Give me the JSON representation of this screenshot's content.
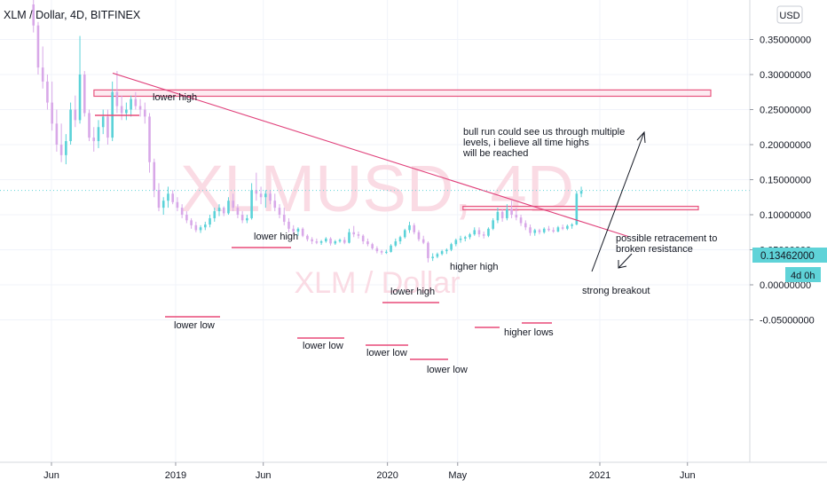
{
  "header": {
    "symbol_line": "XLM / Dollar, 4D, BITFINEX",
    "currency_button": "USD"
  },
  "watermark": {
    "main": "XLMUSD, 4D",
    "sub": "XLM / Dollar"
  },
  "price_tags": {
    "last_price": "0.13462000",
    "countdown": "4d 0h"
  },
  "colors": {
    "candle_up": "#5ad2d8",
    "candle_down": "#d8a8e8",
    "trendline": "#e0407a",
    "zone_stroke": "#e8557f",
    "zone_fill": "#fce4ec",
    "level_line": "#e84a78",
    "price_tag_bg": "#5fd3d8",
    "watermark": "#fadbe4"
  },
  "annotations": {
    "lower_high_1": "lower high",
    "lower_high_2": "lower high",
    "lower_high_3": "lower high",
    "higher_high": "higher high",
    "lower_low_1": "lower low",
    "lower_low_2": "lower low",
    "lower_low_3": "lower low",
    "lower_low_4": "lower low",
    "higher_lows": "higher lows",
    "strong_breakout": "strong breakout",
    "retracement_line1": "possible retracement to",
    "retracement_line2": "broken resistance",
    "bull_line1": "bull run could see us through multiple",
    "bull_line2": "levels, i believe all time highs",
    "bull_line3": "will be reached"
  },
  "chart_data": {
    "type": "candlestick",
    "symbol": "XLM / Dollar",
    "interval": "4D",
    "exchange": "BITFINEX",
    "y_axis": {
      "ticks": [
        0.35,
        0.3,
        0.25,
        0.2,
        0.15,
        0.1,
        0.05,
        0.0,
        -0.05
      ],
      "tick_labels": [
        "0.35000000",
        "0.30000000",
        "0.25000000",
        "0.20000000",
        "0.15000000",
        "0.10000000",
        "0.05000000",
        "0.00000000",
        "-0.05000000"
      ],
      "range": [
        -0.075,
        0.385
      ]
    },
    "x_axis": {
      "tick_labels": [
        "Jun",
        "2019",
        "Jun",
        "2020",
        "May",
        "2021",
        "Jun"
      ],
      "tick_dates": [
        "2018-06",
        "2019-01",
        "2019-06",
        "2020-01",
        "2020-05",
        "2021-01",
        "2021-06"
      ]
    },
    "last_price": 0.13462,
    "resistance_zones": [
      {
        "price_from": 0.269,
        "price_to": 0.278,
        "date_from": "2018-08",
        "date_to": "2021-08"
      },
      {
        "price_from": 0.107,
        "price_to": 0.112,
        "date_from": "2020-05",
        "date_to": "2021-08"
      }
    ],
    "trendline": {
      "from": {
        "date": "2018-09",
        "price": 0.302
      },
      "to": {
        "date": "2021-01",
        "price": 0.069
      }
    },
    "candles_ohlc_approx": [
      {
        "date": "2018-05-01",
        "o": 0.4,
        "h": 0.41,
        "l": 0.36,
        "c": 0.37
      },
      {
        "date": "2018-05-09",
        "o": 0.37,
        "h": 0.375,
        "l": 0.3,
        "c": 0.31
      },
      {
        "date": "2018-05-17",
        "o": 0.31,
        "h": 0.34,
        "l": 0.28,
        "c": 0.29
      },
      {
        "date": "2018-05-25",
        "o": 0.29,
        "h": 0.3,
        "l": 0.25,
        "c": 0.26
      },
      {
        "date": "2018-06-02",
        "o": 0.26,
        "h": 0.29,
        "l": 0.22,
        "c": 0.23
      },
      {
        "date": "2018-06-10",
        "o": 0.23,
        "h": 0.25,
        "l": 0.19,
        "c": 0.2
      },
      {
        "date": "2018-06-18",
        "o": 0.2,
        "h": 0.23,
        "l": 0.175,
        "c": 0.185
      },
      {
        "date": "2018-06-26",
        "o": 0.185,
        "h": 0.215,
        "l": 0.172,
        "c": 0.205
      },
      {
        "date": "2018-07-04",
        "o": 0.205,
        "h": 0.26,
        "l": 0.2,
        "c": 0.25
      },
      {
        "date": "2018-07-12",
        "o": 0.25,
        "h": 0.27,
        "l": 0.225,
        "c": 0.235
      },
      {
        "date": "2018-07-20",
        "o": 0.235,
        "h": 0.355,
        "l": 0.23,
        "c": 0.3
      },
      {
        "date": "2018-07-28",
        "o": 0.3,
        "h": 0.305,
        "l": 0.24,
        "c": 0.245
      },
      {
        "date": "2018-08-05",
        "o": 0.245,
        "h": 0.25,
        "l": 0.205,
        "c": 0.21
      },
      {
        "date": "2018-08-13",
        "o": 0.21,
        "h": 0.225,
        "l": 0.19,
        "c": 0.205
      },
      {
        "date": "2018-08-21",
        "o": 0.205,
        "h": 0.235,
        "l": 0.195,
        "c": 0.225
      },
      {
        "date": "2018-08-29",
        "o": 0.225,
        "h": 0.25,
        "l": 0.215,
        "c": 0.24
      },
      {
        "date": "2018-09-06",
        "o": 0.24,
        "h": 0.25,
        "l": 0.2,
        "c": 0.21
      },
      {
        "date": "2018-09-14",
        "o": 0.21,
        "h": 0.29,
        "l": 0.205,
        "c": 0.275
      },
      {
        "date": "2018-09-22",
        "o": 0.275,
        "h": 0.305,
        "l": 0.245,
        "c": 0.255
      },
      {
        "date": "2018-09-30",
        "o": 0.255,
        "h": 0.27,
        "l": 0.235,
        "c": 0.245
      },
      {
        "date": "2018-10-08",
        "o": 0.245,
        "h": 0.26,
        "l": 0.235,
        "c": 0.25
      },
      {
        "date": "2018-10-16",
        "o": 0.25,
        "h": 0.27,
        "l": 0.24,
        "c": 0.265
      },
      {
        "date": "2018-10-24",
        "o": 0.265,
        "h": 0.275,
        "l": 0.25,
        "c": 0.255
      },
      {
        "date": "2018-11-01",
        "o": 0.255,
        "h": 0.265,
        "l": 0.24,
        "c": 0.25
      },
      {
        "date": "2018-11-09",
        "o": 0.25,
        "h": 0.26,
        "l": 0.23,
        "c": 0.24
      },
      {
        "date": "2018-11-17",
        "o": 0.24,
        "h": 0.245,
        "l": 0.16,
        "c": 0.175
      },
      {
        "date": "2018-11-25",
        "o": 0.175,
        "h": 0.18,
        "l": 0.125,
        "c": 0.135
      },
      {
        "date": "2018-12-03",
        "o": 0.135,
        "h": 0.145,
        "l": 0.105,
        "c": 0.11
      },
      {
        "date": "2018-12-11",
        "o": 0.11,
        "h": 0.125,
        "l": 0.1,
        "c": 0.12
      },
      {
        "date": "2018-12-19",
        "o": 0.12,
        "h": 0.14,
        "l": 0.11,
        "c": 0.13
      },
      {
        "date": "2018-12-27",
        "o": 0.13,
        "h": 0.135,
        "l": 0.115,
        "c": 0.118
      },
      {
        "date": "2019-01-04",
        "o": 0.118,
        "h": 0.125,
        "l": 0.105,
        "c": 0.11
      },
      {
        "date": "2019-01-12",
        "o": 0.11,
        "h": 0.115,
        "l": 0.095,
        "c": 0.1
      },
      {
        "date": "2019-01-20",
        "o": 0.1,
        "h": 0.105,
        "l": 0.088,
        "c": 0.092
      },
      {
        "date": "2019-01-28",
        "o": 0.092,
        "h": 0.095,
        "l": 0.08,
        "c": 0.085
      },
      {
        "date": "2019-02-05",
        "o": 0.085,
        "h": 0.09,
        "l": 0.075,
        "c": 0.078
      },
      {
        "date": "2019-02-13",
        "o": 0.078,
        "h": 0.085,
        "l": 0.074,
        "c": 0.082
      },
      {
        "date": "2019-02-21",
        "o": 0.082,
        "h": 0.09,
        "l": 0.078,
        "c": 0.086
      },
      {
        "date": "2019-03-01",
        "o": 0.086,
        "h": 0.1,
        "l": 0.082,
        "c": 0.095
      },
      {
        "date": "2019-03-09",
        "o": 0.095,
        "h": 0.11,
        "l": 0.09,
        "c": 0.105
      },
      {
        "date": "2019-03-17",
        "o": 0.105,
        "h": 0.115,
        "l": 0.098,
        "c": 0.11
      },
      {
        "date": "2019-03-25",
        "o": 0.11,
        "h": 0.112,
        "l": 0.098,
        "c": 0.102
      },
      {
        "date": "2019-04-02",
        "o": 0.102,
        "h": 0.125,
        "l": 0.1,
        "c": 0.12
      },
      {
        "date": "2019-04-10",
        "o": 0.12,
        "h": 0.13,
        "l": 0.105,
        "c": 0.11
      },
      {
        "date": "2019-04-18",
        "o": 0.11,
        "h": 0.115,
        "l": 0.095,
        "c": 0.1
      },
      {
        "date": "2019-04-26",
        "o": 0.1,
        "h": 0.105,
        "l": 0.088,
        "c": 0.092
      },
      {
        "date": "2019-05-04",
        "o": 0.092,
        "h": 0.1,
        "l": 0.088,
        "c": 0.095
      },
      {
        "date": "2019-05-12",
        "o": 0.095,
        "h": 0.145,
        "l": 0.093,
        "c": 0.135
      },
      {
        "date": "2019-05-20",
        "o": 0.135,
        "h": 0.16,
        "l": 0.12,
        "c": 0.13
      },
      {
        "date": "2019-05-28",
        "o": 0.13,
        "h": 0.14,
        "l": 0.115,
        "c": 0.125
      },
      {
        "date": "2019-06-05",
        "o": 0.125,
        "h": 0.135,
        "l": 0.11,
        "c": 0.13
      },
      {
        "date": "2019-06-13",
        "o": 0.13,
        "h": 0.135,
        "l": 0.115,
        "c": 0.12
      },
      {
        "date": "2019-06-21",
        "o": 0.12,
        "h": 0.13,
        "l": 0.105,
        "c": 0.11
      },
      {
        "date": "2019-06-29",
        "o": 0.11,
        "h": 0.115,
        "l": 0.095,
        "c": 0.1
      },
      {
        "date": "2019-07-07",
        "o": 0.1,
        "h": 0.11,
        "l": 0.085,
        "c": 0.09
      },
      {
        "date": "2019-07-15",
        "o": 0.09,
        "h": 0.095,
        "l": 0.075,
        "c": 0.08
      },
      {
        "date": "2019-07-23",
        "o": 0.08,
        "h": 0.085,
        "l": 0.072,
        "c": 0.076
      },
      {
        "date": "2019-07-31",
        "o": 0.076,
        "h": 0.082,
        "l": 0.07,
        "c": 0.08
      },
      {
        "date": "2019-08-08",
        "o": 0.08,
        "h": 0.082,
        "l": 0.068,
        "c": 0.07
      },
      {
        "date": "2019-08-16",
        "o": 0.07,
        "h": 0.072,
        "l": 0.062,
        "c": 0.065
      },
      {
        "date": "2019-08-24",
        "o": 0.065,
        "h": 0.068,
        "l": 0.058,
        "c": 0.062
      },
      {
        "date": "2019-09-01",
        "o": 0.062,
        "h": 0.066,
        "l": 0.058,
        "c": 0.06
      },
      {
        "date": "2019-09-09",
        "o": 0.06,
        "h": 0.064,
        "l": 0.057,
        "c": 0.062
      },
      {
        "date": "2019-09-17",
        "o": 0.062,
        "h": 0.068,
        "l": 0.06,
        "c": 0.066
      },
      {
        "date": "2019-09-25",
        "o": 0.066,
        "h": 0.068,
        "l": 0.056,
        "c": 0.059
      },
      {
        "date": "2019-10-03",
        "o": 0.059,
        "h": 0.064,
        "l": 0.057,
        "c": 0.062
      },
      {
        "date": "2019-10-11",
        "o": 0.062,
        "h": 0.066,
        "l": 0.06,
        "c": 0.064
      },
      {
        "date": "2019-10-19",
        "o": 0.064,
        "h": 0.068,
        "l": 0.058,
        "c": 0.06
      },
      {
        "date": "2019-10-27",
        "o": 0.06,
        "h": 0.08,
        "l": 0.059,
        "c": 0.075
      },
      {
        "date": "2019-11-04",
        "o": 0.075,
        "h": 0.084,
        "l": 0.068,
        "c": 0.072
      },
      {
        "date": "2019-11-12",
        "o": 0.072,
        "h": 0.076,
        "l": 0.066,
        "c": 0.07
      },
      {
        "date": "2019-11-20",
        "o": 0.07,
        "h": 0.072,
        "l": 0.058,
        "c": 0.062
      },
      {
        "date": "2019-11-28",
        "o": 0.062,
        "h": 0.066,
        "l": 0.055,
        "c": 0.058
      },
      {
        "date": "2019-12-06",
        "o": 0.058,
        "h": 0.06,
        "l": 0.05,
        "c": 0.052
      },
      {
        "date": "2019-12-14",
        "o": 0.052,
        "h": 0.055,
        "l": 0.045,
        "c": 0.048
      },
      {
        "date": "2019-12-22",
        "o": 0.048,
        "h": 0.05,
        "l": 0.043,
        "c": 0.046
      },
      {
        "date": "2019-12-30",
        "o": 0.046,
        "h": 0.05,
        "l": 0.044,
        "c": 0.047
      },
      {
        "date": "2020-01-07",
        "o": 0.047,
        "h": 0.058,
        "l": 0.046,
        "c": 0.056
      },
      {
        "date": "2020-01-15",
        "o": 0.056,
        "h": 0.066,
        "l": 0.054,
        "c": 0.062
      },
      {
        "date": "2020-01-23",
        "o": 0.062,
        "h": 0.07,
        "l": 0.058,
        "c": 0.068
      },
      {
        "date": "2020-01-31",
        "o": 0.068,
        "h": 0.08,
        "l": 0.066,
        "c": 0.078
      },
      {
        "date": "2020-02-08",
        "o": 0.078,
        "h": 0.09,
        "l": 0.074,
        "c": 0.085
      },
      {
        "date": "2020-02-16",
        "o": 0.085,
        "h": 0.088,
        "l": 0.072,
        "c": 0.075
      },
      {
        "date": "2020-02-24",
        "o": 0.075,
        "h": 0.078,
        "l": 0.062,
        "c": 0.065
      },
      {
        "date": "2020-03-03",
        "o": 0.065,
        "h": 0.07,
        "l": 0.058,
        "c": 0.06
      },
      {
        "date": "2020-03-11",
        "o": 0.06,
        "h": 0.062,
        "l": 0.032,
        "c": 0.038
      },
      {
        "date": "2020-03-19",
        "o": 0.038,
        "h": 0.045,
        "l": 0.034,
        "c": 0.04
      },
      {
        "date": "2020-03-27",
        "o": 0.04,
        "h": 0.046,
        "l": 0.038,
        "c": 0.044
      },
      {
        "date": "2020-04-04",
        "o": 0.044,
        "h": 0.05,
        "l": 0.042,
        "c": 0.048
      },
      {
        "date": "2020-04-12",
        "o": 0.048,
        "h": 0.052,
        "l": 0.044,
        "c": 0.05
      },
      {
        "date": "2020-04-20",
        "o": 0.05,
        "h": 0.06,
        "l": 0.048,
        "c": 0.058
      },
      {
        "date": "2020-04-28",
        "o": 0.058,
        "h": 0.066,
        "l": 0.055,
        "c": 0.064
      },
      {
        "date": "2020-05-06",
        "o": 0.064,
        "h": 0.07,
        "l": 0.06,
        "c": 0.066
      },
      {
        "date": "2020-05-14",
        "o": 0.066,
        "h": 0.07,
        "l": 0.062,
        "c": 0.068
      },
      {
        "date": "2020-05-22",
        "o": 0.068,
        "h": 0.074,
        "l": 0.065,
        "c": 0.072
      },
      {
        "date": "2020-05-30",
        "o": 0.072,
        "h": 0.082,
        "l": 0.07,
        "c": 0.078
      },
      {
        "date": "2020-06-07",
        "o": 0.078,
        "h": 0.082,
        "l": 0.068,
        "c": 0.072
      },
      {
        "date": "2020-06-15",
        "o": 0.072,
        "h": 0.076,
        "l": 0.066,
        "c": 0.07
      },
      {
        "date": "2020-06-23",
        "o": 0.07,
        "h": 0.082,
        "l": 0.068,
        "c": 0.08
      },
      {
        "date": "2020-07-01",
        "o": 0.08,
        "h": 0.095,
        "l": 0.078,
        "c": 0.092
      },
      {
        "date": "2020-07-09",
        "o": 0.092,
        "h": 0.11,
        "l": 0.088,
        "c": 0.104
      },
      {
        "date": "2020-07-17",
        "o": 0.104,
        "h": 0.108,
        "l": 0.09,
        "c": 0.095
      },
      {
        "date": "2020-07-25",
        "o": 0.095,
        "h": 0.115,
        "l": 0.092,
        "c": 0.108
      },
      {
        "date": "2020-08-02",
        "o": 0.108,
        "h": 0.12,
        "l": 0.095,
        "c": 0.1
      },
      {
        "date": "2020-08-10",
        "o": 0.1,
        "h": 0.11,
        "l": 0.092,
        "c": 0.096
      },
      {
        "date": "2020-08-18",
        "o": 0.096,
        "h": 0.1,
        "l": 0.084,
        "c": 0.088
      },
      {
        "date": "2020-08-26",
        "o": 0.088,
        "h": 0.092,
        "l": 0.078,
        "c": 0.082
      },
      {
        "date": "2020-09-03",
        "o": 0.082,
        "h": 0.086,
        "l": 0.07,
        "c": 0.074
      },
      {
        "date": "2020-09-11",
        "o": 0.074,
        "h": 0.08,
        "l": 0.07,
        "c": 0.078
      },
      {
        "date": "2020-09-19",
        "o": 0.078,
        "h": 0.08,
        "l": 0.072,
        "c": 0.075
      },
      {
        "date": "2020-09-27",
        "o": 0.075,
        "h": 0.082,
        "l": 0.073,
        "c": 0.08
      },
      {
        "date": "2020-10-05",
        "o": 0.08,
        "h": 0.084,
        "l": 0.076,
        "c": 0.078
      },
      {
        "date": "2020-10-13",
        "o": 0.078,
        "h": 0.082,
        "l": 0.074,
        "c": 0.076
      },
      {
        "date": "2020-10-21",
        "o": 0.076,
        "h": 0.084,
        "l": 0.075,
        "c": 0.082
      },
      {
        "date": "2020-10-29",
        "o": 0.082,
        "h": 0.086,
        "l": 0.078,
        "c": 0.08
      },
      {
        "date": "2020-11-06",
        "o": 0.08,
        "h": 0.086,
        "l": 0.078,
        "c": 0.084
      },
      {
        "date": "2020-11-14",
        "o": 0.084,
        "h": 0.088,
        "l": 0.08,
        "c": 0.086
      },
      {
        "date": "2020-11-22",
        "o": 0.086,
        "h": 0.134,
        "l": 0.085,
        "c": 0.13
      },
      {
        "date": "2020-11-30",
        "o": 0.13,
        "h": 0.14,
        "l": 0.125,
        "c": 0.134
      }
    ]
  }
}
